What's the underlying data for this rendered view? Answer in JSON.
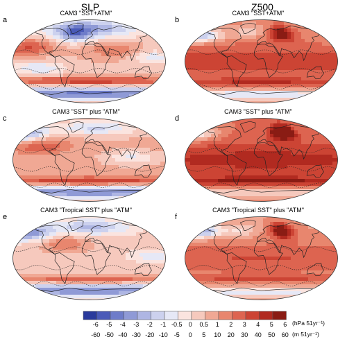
{
  "columns": {
    "left": "SLP",
    "right": "Z500"
  },
  "panels": [
    {
      "letter": "a",
      "title": "CAM3 \"SST+ATM\"",
      "variable": "SLP",
      "pattern": "slp_a"
    },
    {
      "letter": "b",
      "title": "CAM3 \"SST+ATM\"",
      "variable": "Z500",
      "pattern": "z_b"
    },
    {
      "letter": "c",
      "title": "CAM3 \"SST\" plus \"ATM\"",
      "variable": "SLP",
      "pattern": "slp_c"
    },
    {
      "letter": "d",
      "title": "CAM3 \"SST\" plus \"ATM\"",
      "variable": "Z500",
      "pattern": "z_d"
    },
    {
      "letter": "e",
      "title": "CAM3 \"Tropical SST\" plus \"ATM\"",
      "variable": "SLP",
      "pattern": "slp_e"
    },
    {
      "letter": "f",
      "title": "CAM3 \"Tropical SST\" plus \"ATM\"",
      "variable": "Z500",
      "pattern": "z_f"
    }
  ],
  "colorbar": {
    "colors": [
      "#2a3a9c",
      "#4a5ab8",
      "#6e7cc9",
      "#8f9ad6",
      "#aeb6e3",
      "#ccd1ee",
      "#e6e8f6",
      "#fbe4df",
      "#f6c9bd",
      "#f0a894",
      "#e8866e",
      "#dd6450",
      "#cc4434",
      "#b12a20",
      "#8a1c14"
    ],
    "top_labels": [
      "-6",
      "-5",
      "-4",
      "-3",
      "-2",
      "-1",
      "-0.5",
      "0",
      "0.5",
      "1",
      "2",
      "3",
      "4",
      "5",
      "6"
    ],
    "bottom_labels": [
      "-60",
      "-50",
      "-40",
      "-30",
      "-20",
      "-10",
      "-5",
      "0",
      "5",
      "10",
      "20",
      "30",
      "40",
      "50",
      "60"
    ],
    "top_unit": "(hPa 51yr⁻¹)",
    "bottom_unit": "(m 51yr⁻¹)"
  }
}
